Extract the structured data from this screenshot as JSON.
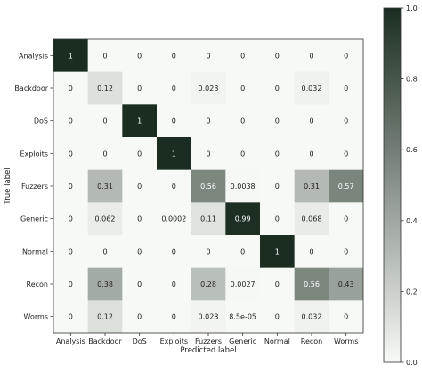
{
  "chart_data": {
    "type": "heatmap",
    "title": "",
    "xlabel": "Predicted label",
    "ylabel": "True label",
    "x_categories": [
      "Analysis",
      "Backdoor",
      "DoS",
      "Exploits",
      "Fuzzers",
      "Generic",
      "Normal",
      "Recon",
      "Worms"
    ],
    "y_categories": [
      "Analysis",
      "Backdoor",
      "DoS",
      "Exploits",
      "Fuzzers",
      "Generic",
      "Normal",
      "Recon",
      "Worms"
    ],
    "cells": [
      [
        "1",
        "0",
        "0",
        "0",
        "0",
        "0",
        "0",
        "0",
        "0"
      ],
      [
        "0",
        "0.12",
        "0",
        "0",
        "0.023",
        "0",
        "0",
        "0.032",
        "0"
      ],
      [
        "0",
        "0",
        "1",
        "0",
        "0",
        "0",
        "0",
        "0",
        "0"
      ],
      [
        "0",
        "0",
        "0",
        "1",
        "0",
        "0",
        "0",
        "0",
        "0"
      ],
      [
        "0",
        "0.31",
        "0",
        "0",
        "0.56",
        "0.0038",
        "0",
        "0.31",
        "0.57"
      ],
      [
        "0",
        "0.062",
        "0",
        "0.0002",
        "0.11",
        "0.99",
        "0",
        "0.068",
        "0"
      ],
      [
        "0",
        "0",
        "0",
        "0",
        "0",
        "0",
        "1",
        "0",
        "0"
      ],
      [
        "0",
        "0.38",
        "0",
        "0",
        "0.28",
        "0.0027",
        "0",
        "0.56",
        "0.43"
      ],
      [
        "0",
        "0.12",
        "0",
        "0",
        "0.023",
        "8.5e-05",
        "0",
        "0.032",
        "0"
      ]
    ],
    "colorbar": {
      "range": [
        0.0,
        1.0
      ],
      "ticks": [
        "0.0",
        "0.2",
        "0.4",
        "0.6",
        "0.8",
        "1.0"
      ]
    },
    "colormap": {
      "low": "#f7f9f6",
      "high": "#1b2d20"
    },
    "grid": false
  }
}
